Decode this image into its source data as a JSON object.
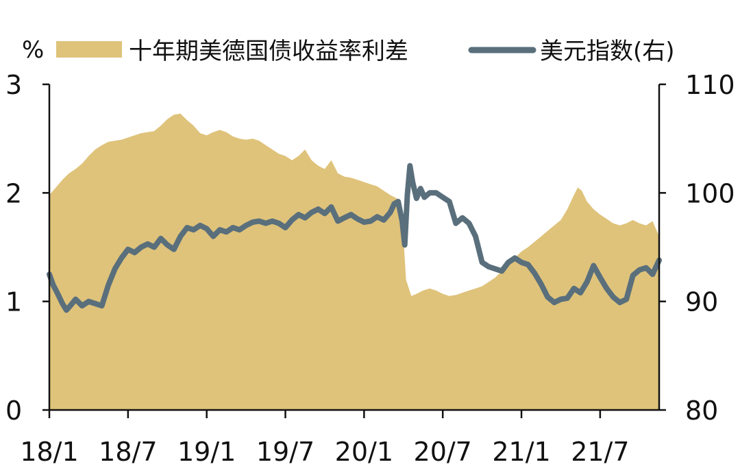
{
  "chart_data": {
    "type": "area+line",
    "unit_left": "%",
    "left_axis": {
      "ylim": [
        0,
        3
      ],
      "ticks": [
        "0",
        "1",
        "2",
        "3"
      ]
    },
    "right_axis": {
      "ylim": [
        80,
        110
      ],
      "ticks": [
        "80",
        "90",
        "100",
        "110"
      ]
    },
    "x_axis": {
      "tick_labels": [
        "18/1",
        "18/7",
        "19/1",
        "19/7",
        "20/1",
        "20/7",
        "21/1",
        "21/7"
      ],
      "range_months": [
        0,
        46.5
      ]
    },
    "legend_position": "top",
    "series": [
      {
        "name": "十年期美德国债收益率利差",
        "axis": "left",
        "kind": "area",
        "color": "#dfc37b",
        "points": [
          [
            0,
            1.98
          ],
          [
            0.5,
            2.05
          ],
          [
            1,
            2.12
          ],
          [
            1.5,
            2.18
          ],
          [
            2,
            2.22
          ],
          [
            2.5,
            2.27
          ],
          [
            3,
            2.34
          ],
          [
            3.5,
            2.4
          ],
          [
            4,
            2.44
          ],
          [
            4.5,
            2.47
          ],
          [
            5,
            2.48
          ],
          [
            5.5,
            2.49
          ],
          [
            6,
            2.51
          ],
          [
            6.5,
            2.53
          ],
          [
            7,
            2.55
          ],
          [
            7.5,
            2.56
          ],
          [
            8,
            2.57
          ],
          [
            8.5,
            2.62
          ],
          [
            9,
            2.68
          ],
          [
            9.5,
            2.72
          ],
          [
            10,
            2.73
          ],
          [
            10.5,
            2.67
          ],
          [
            11,
            2.62
          ],
          [
            11.5,
            2.55
          ],
          [
            12,
            2.53
          ],
          [
            12.5,
            2.56
          ],
          [
            13,
            2.58
          ],
          [
            13.5,
            2.56
          ],
          [
            14,
            2.52
          ],
          [
            14.5,
            2.5
          ],
          [
            15,
            2.49
          ],
          [
            15.5,
            2.5
          ],
          [
            16,
            2.48
          ],
          [
            16.5,
            2.44
          ],
          [
            17,
            2.4
          ],
          [
            17.5,
            2.36
          ],
          [
            18,
            2.34
          ],
          [
            18.5,
            2.3
          ],
          [
            19,
            2.34
          ],
          [
            19.5,
            2.4
          ],
          [
            20,
            2.3
          ],
          [
            20.5,
            2.25
          ],
          [
            21,
            2.22
          ],
          [
            21.5,
            2.3
          ],
          [
            22,
            2.18
          ],
          [
            22.5,
            2.15
          ],
          [
            23,
            2.14
          ],
          [
            23.5,
            2.12
          ],
          [
            24,
            2.1
          ],
          [
            24.5,
            2.08
          ],
          [
            25,
            2.06
          ],
          [
            25.5,
            2.02
          ],
          [
            26,
            1.98
          ],
          [
            26.5,
            1.95
          ],
          [
            26.8,
            1.9
          ],
          [
            27.0,
            1.6
          ],
          [
            27.2,
            1.2
          ],
          [
            27.6,
            1.05
          ],
          [
            28,
            1.07
          ],
          [
            28.5,
            1.1
          ],
          [
            29,
            1.12
          ],
          [
            29.5,
            1.1
          ],
          [
            30,
            1.07
          ],
          [
            30.5,
            1.05
          ],
          [
            31,
            1.06
          ],
          [
            31.5,
            1.08
          ],
          [
            32,
            1.1
          ],
          [
            32.5,
            1.12
          ],
          [
            33,
            1.14
          ],
          [
            33.5,
            1.18
          ],
          [
            34,
            1.22
          ],
          [
            34.5,
            1.28
          ],
          [
            35,
            1.34
          ],
          [
            35.5,
            1.4
          ],
          [
            36,
            1.46
          ],
          [
            36.5,
            1.5
          ],
          [
            37,
            1.55
          ],
          [
            37.5,
            1.6
          ],
          [
            38,
            1.65
          ],
          [
            38.5,
            1.7
          ],
          [
            39,
            1.75
          ],
          [
            39.5,
            1.85
          ],
          [
            40,
            1.98
          ],
          [
            40.3,
            2.05
          ],
          [
            40.6,
            2.02
          ],
          [
            41,
            1.92
          ],
          [
            41.5,
            1.85
          ],
          [
            42,
            1.8
          ],
          [
            42.5,
            1.76
          ],
          [
            43,
            1.72
          ],
          [
            43.5,
            1.7
          ],
          [
            44,
            1.72
          ],
          [
            44.5,
            1.75
          ],
          [
            45,
            1.72
          ],
          [
            45.5,
            1.7
          ],
          [
            46,
            1.74
          ],
          [
            46.5,
            1.6
          ]
        ]
      },
      {
        "name": "美元指数(右)",
        "axis": "right",
        "kind": "line",
        "color": "#5a6f7c",
        "points": [
          [
            0,
            92.5
          ],
          [
            0.3,
            91.5
          ],
          [
            0.6,
            90.8
          ],
          [
            1,
            89.8
          ],
          [
            1.3,
            89.2
          ],
          [
            1.6,
            89.6
          ],
          [
            2,
            90.2
          ],
          [
            2.5,
            89.6
          ],
          [
            3,
            90.0
          ],
          [
            3.5,
            89.8
          ],
          [
            4,
            89.6
          ],
          [
            4.5,
            91.5
          ],
          [
            5,
            93.0
          ],
          [
            5.5,
            94.0
          ],
          [
            6,
            94.8
          ],
          [
            6.5,
            94.5
          ],
          [
            7,
            95.0
          ],
          [
            7.5,
            95.3
          ],
          [
            8,
            95.0
          ],
          [
            8.5,
            95.8
          ],
          [
            9,
            95.2
          ],
          [
            9.5,
            94.8
          ],
          [
            10,
            96.0
          ],
          [
            10.5,
            96.8
          ],
          [
            11,
            96.6
          ],
          [
            11.5,
            97.0
          ],
          [
            12,
            96.7
          ],
          [
            12.5,
            96.0
          ],
          [
            13,
            96.6
          ],
          [
            13.5,
            96.4
          ],
          [
            14,
            96.8
          ],
          [
            14.5,
            96.6
          ],
          [
            15,
            97.0
          ],
          [
            15.5,
            97.3
          ],
          [
            16,
            97.4
          ],
          [
            16.5,
            97.2
          ],
          [
            17,
            97.4
          ],
          [
            17.5,
            97.2
          ],
          [
            18,
            96.8
          ],
          [
            18.5,
            97.5
          ],
          [
            19,
            98.0
          ],
          [
            19.5,
            97.7
          ],
          [
            20,
            98.2
          ],
          [
            20.5,
            98.5
          ],
          [
            21,
            98.1
          ],
          [
            21.5,
            98.7
          ],
          [
            22,
            97.4
          ],
          [
            22.5,
            97.7
          ],
          [
            23,
            98.0
          ],
          [
            23.5,
            97.6
          ],
          [
            24,
            97.3
          ],
          [
            24.5,
            97.4
          ],
          [
            25,
            97.8
          ],
          [
            25.5,
            97.5
          ],
          [
            26,
            98.2
          ],
          [
            26.3,
            99.0
          ],
          [
            26.6,
            99.2
          ],
          [
            26.9,
            97.4
          ],
          [
            27.1,
            95.2
          ],
          [
            27.3,
            99.8
          ],
          [
            27.5,
            102.5
          ],
          [
            27.7,
            101.0
          ],
          [
            28,
            99.5
          ],
          [
            28.3,
            100.4
          ],
          [
            28.6,
            99.6
          ],
          [
            29,
            100.0
          ],
          [
            29.5,
            100.0
          ],
          [
            30,
            99.6
          ],
          [
            30.5,
            99.2
          ],
          [
            31,
            97.2
          ],
          [
            31.5,
            97.7
          ],
          [
            32,
            97.2
          ],
          [
            32.5,
            96.0
          ],
          [
            33,
            93.6
          ],
          [
            33.5,
            93.2
          ],
          [
            34,
            93.0
          ],
          [
            34.5,
            92.8
          ],
          [
            35,
            93.6
          ],
          [
            35.5,
            94.0
          ],
          [
            36,
            93.6
          ],
          [
            36.5,
            93.4
          ],
          [
            37,
            92.6
          ],
          [
            37.5,
            91.6
          ],
          [
            38,
            90.4
          ],
          [
            38.5,
            89.9
          ],
          [
            39,
            90.2
          ],
          [
            39.5,
            90.3
          ],
          [
            40,
            91.2
          ],
          [
            40.5,
            90.8
          ],
          [
            41,
            91.8
          ],
          [
            41.5,
            93.3
          ],
          [
            42,
            92.2
          ],
          [
            42.5,
            91.2
          ],
          [
            43,
            90.4
          ],
          [
            43.5,
            89.9
          ],
          [
            44,
            90.2
          ],
          [
            44.5,
            92.4
          ],
          [
            45,
            92.9
          ],
          [
            45.5,
            93.1
          ],
          [
            46,
            92.5
          ],
          [
            46.5,
            93.8
          ]
        ]
      }
    ]
  }
}
